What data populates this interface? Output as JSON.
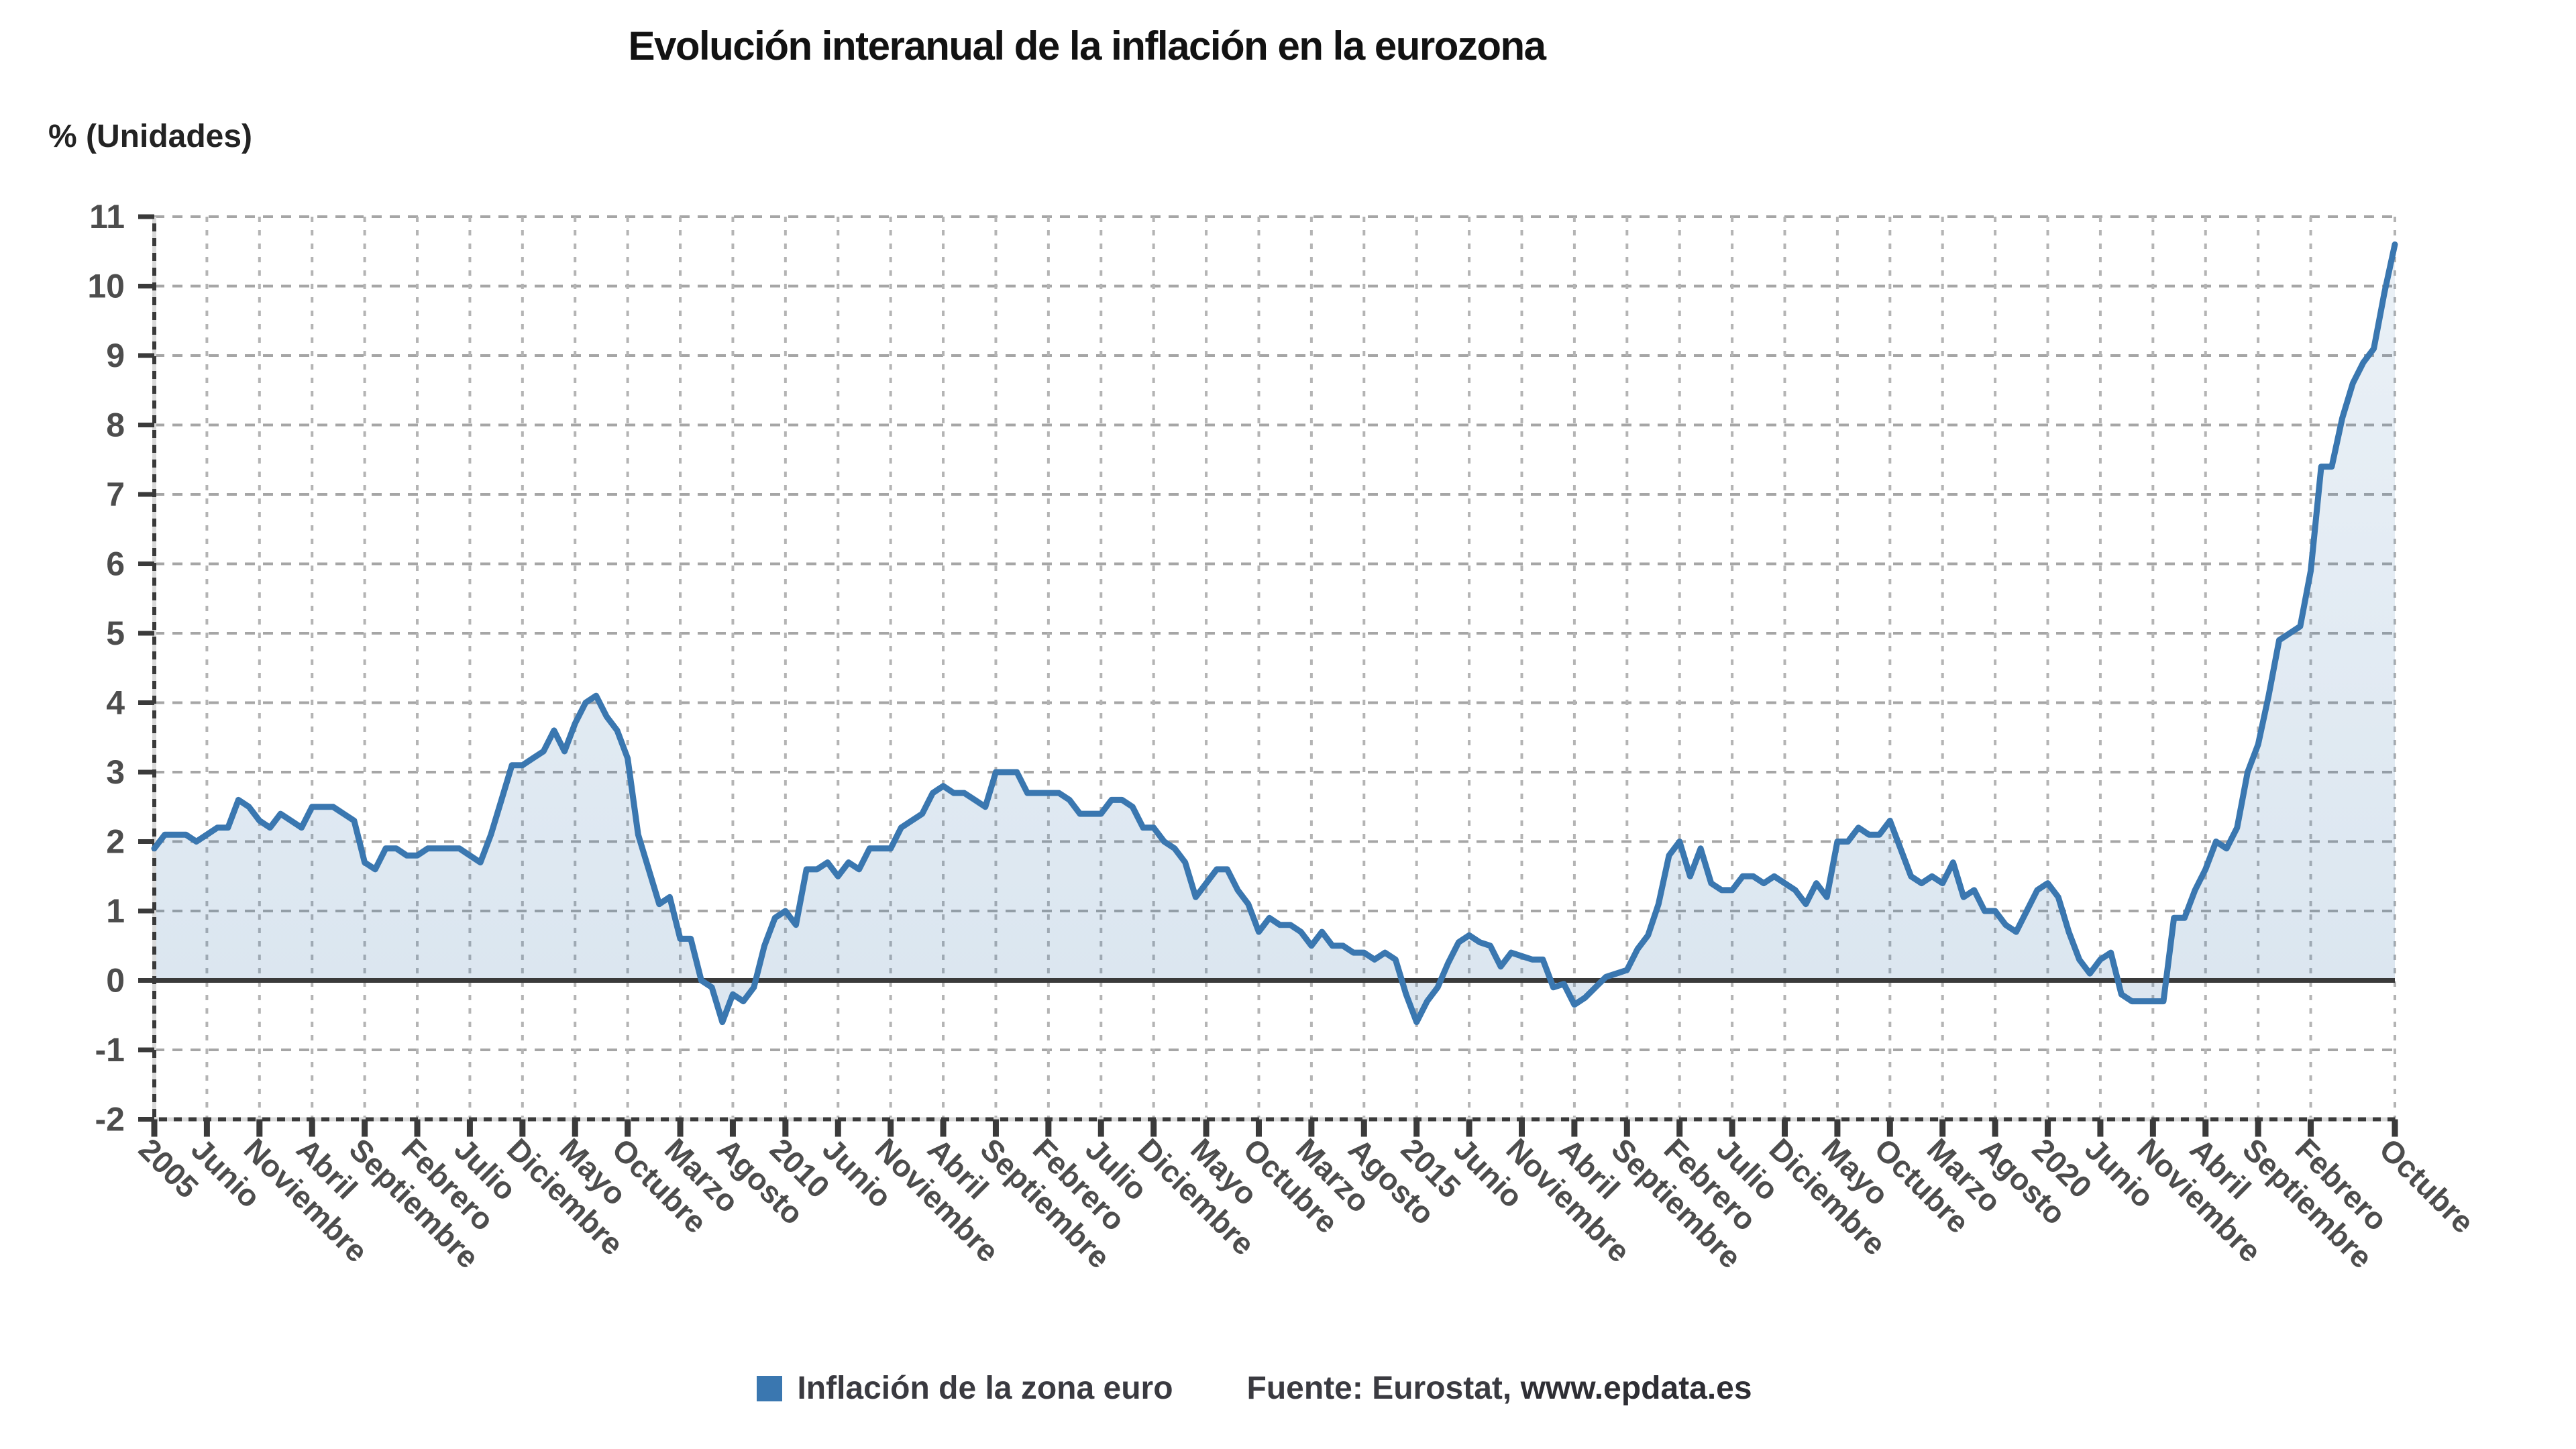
{
  "title": "Evolución interanual de la inflación en la eurozona",
  "y_axis_label": "% (Unidades)",
  "legend": {
    "series_label": "Inflación de la zona euro",
    "source_prefix": "Fuente: Eurostat, ",
    "source_site": "www.epdata.es"
  },
  "colors": {
    "series": "#3a77b0",
    "area_from": "rgba(58,118,173,0.10)",
    "area_to": "rgba(58,118,173,0.18)",
    "grid_horizontal": "#a6a6a6",
    "grid_vertical": "#b4b4b4",
    "axis": "#3a3a3a",
    "axis_dash_overlay": "#d9d9d9",
    "tick_text": "#4d4d4d",
    "title_text": "#121212"
  },
  "chart_data": {
    "type": "area",
    "title": "Evolución interanual de la inflación en la eurozona",
    "ylabel": "% (Unidades)",
    "ylim": [
      -2,
      11
    ],
    "y_ticks": [
      11,
      10,
      9,
      8,
      7,
      6,
      5,
      4,
      3,
      2,
      1,
      0,
      -1,
      -2
    ],
    "x_start": "Enero 2005",
    "x_end": "Octubre 2022",
    "grid": "dashed",
    "legend_position": "bottom",
    "x_tick_labels": [
      {
        "i": 0,
        "label": "2005"
      },
      {
        "i": 5,
        "label": "Junio"
      },
      {
        "i": 10,
        "label": "Noviembre"
      },
      {
        "i": 15,
        "label": "Abril"
      },
      {
        "i": 20,
        "label": "Septiembre"
      },
      {
        "i": 25,
        "label": "Febrero"
      },
      {
        "i": 30,
        "label": "Julio"
      },
      {
        "i": 35,
        "label": "Diciembre"
      },
      {
        "i": 40,
        "label": "Mayo"
      },
      {
        "i": 45,
        "label": "Octubre"
      },
      {
        "i": 50,
        "label": "Marzo"
      },
      {
        "i": 55,
        "label": "Agosto"
      },
      {
        "i": 60,
        "label": "2010"
      },
      {
        "i": 65,
        "label": "Junio"
      },
      {
        "i": 70,
        "label": "Noviembre"
      },
      {
        "i": 75,
        "label": "Abril"
      },
      {
        "i": 80,
        "label": "Septiembre"
      },
      {
        "i": 85,
        "label": "Febrero"
      },
      {
        "i": 90,
        "label": "Julio"
      },
      {
        "i": 95,
        "label": "Diciembre"
      },
      {
        "i": 100,
        "label": "Mayo"
      },
      {
        "i": 105,
        "label": "Octubre"
      },
      {
        "i": 110,
        "label": "Marzo"
      },
      {
        "i": 115,
        "label": "Agosto"
      },
      {
        "i": 120,
        "label": "2015"
      },
      {
        "i": 125,
        "label": "Junio"
      },
      {
        "i": 130,
        "label": "Noviembre"
      },
      {
        "i": 135,
        "label": "Abril"
      },
      {
        "i": 140,
        "label": "Septiembre"
      },
      {
        "i": 145,
        "label": "Febrero"
      },
      {
        "i": 150,
        "label": "Julio"
      },
      {
        "i": 155,
        "label": "Diciembre"
      },
      {
        "i": 160,
        "label": "Mayo"
      },
      {
        "i": 165,
        "label": "Octubre"
      },
      {
        "i": 170,
        "label": "Marzo"
      },
      {
        "i": 175,
        "label": "Agosto"
      },
      {
        "i": 180,
        "label": "2020"
      },
      {
        "i": 185,
        "label": "Junio"
      },
      {
        "i": 190,
        "label": "Noviembre"
      },
      {
        "i": 195,
        "label": "Abril"
      },
      {
        "i": 200,
        "label": "Septiembre"
      },
      {
        "i": 205,
        "label": "Febrero"
      },
      {
        "i": 213,
        "label": "Octubre"
      }
    ],
    "series": [
      {
        "name": "Inflación de la zona euro",
        "values": [
          1.9,
          2.1,
          2.1,
          2.1,
          2.0,
          2.1,
          2.2,
          2.2,
          2.6,
          2.5,
          2.3,
          2.2,
          2.4,
          2.3,
          2.2,
          2.5,
          2.5,
          2.5,
          2.4,
          2.3,
          1.7,
          1.6,
          1.9,
          1.9,
          1.8,
          1.8,
          1.9,
          1.9,
          1.9,
          1.9,
          1.8,
          1.7,
          2.1,
          2.6,
          3.1,
          3.1,
          3.2,
          3.3,
          3.6,
          3.3,
          3.7,
          4.0,
          4.1,
          3.8,
          3.6,
          3.2,
          2.1,
          1.6,
          1.1,
          1.2,
          0.6,
          0.6,
          0.0,
          -0.1,
          -0.6,
          -0.2,
          -0.3,
          -0.1,
          0.5,
          0.9,
          1.0,
          0.8,
          1.6,
          1.6,
          1.7,
          1.5,
          1.7,
          1.6,
          1.9,
          1.9,
          1.9,
          2.2,
          2.3,
          2.4,
          2.7,
          2.8,
          2.7,
          2.7,
          2.6,
          2.5,
          3.0,
          3.0,
          3.0,
          2.7,
          2.7,
          2.7,
          2.7,
          2.6,
          2.4,
          2.4,
          2.4,
          2.6,
          2.6,
          2.5,
          2.2,
          2.2,
          2.0,
          1.9,
          1.7,
          1.2,
          1.4,
          1.6,
          1.6,
          1.3,
          1.1,
          0.7,
          0.9,
          0.8,
          0.8,
          0.7,
          0.5,
          0.7,
          0.5,
          0.5,
          0.4,
          0.4,
          0.3,
          0.4,
          0.3,
          -0.2,
          -0.6,
          -0.3,
          -0.1,
          0.25,
          0.55,
          0.65,
          0.55,
          0.5,
          0.2,
          0.4,
          0.35,
          0.3,
          0.3,
          -0.1,
          -0.05,
          -0.35,
          -0.25,
          -0.1,
          0.05,
          0.1,
          0.15,
          0.45,
          0.65,
          1.1,
          1.8,
          2.0,
          1.5,
          1.9,
          1.4,
          1.3,
          1.3,
          1.5,
          1.5,
          1.4,
          1.5,
          1.4,
          1.3,
          1.1,
          1.4,
          1.2,
          2.0,
          2.0,
          2.2,
          2.1,
          2.1,
          2.3,
          1.9,
          1.5,
          1.4,
          1.5,
          1.4,
          1.7,
          1.2,
          1.3,
          1.0,
          1.0,
          0.8,
          0.7,
          1.0,
          1.3,
          1.4,
          1.2,
          0.7,
          0.3,
          0.1,
          0.3,
          0.4,
          -0.2,
          -0.3,
          -0.3,
          -0.3,
          -0.3,
          0.9,
          0.9,
          1.3,
          1.6,
          2.0,
          1.9,
          2.2,
          3.0,
          3.4,
          4.1,
          4.9,
          5.0,
          5.1,
          5.9,
          7.4,
          7.4,
          8.1,
          8.6,
          8.9,
          9.1,
          9.9,
          10.6
        ]
      }
    ]
  }
}
